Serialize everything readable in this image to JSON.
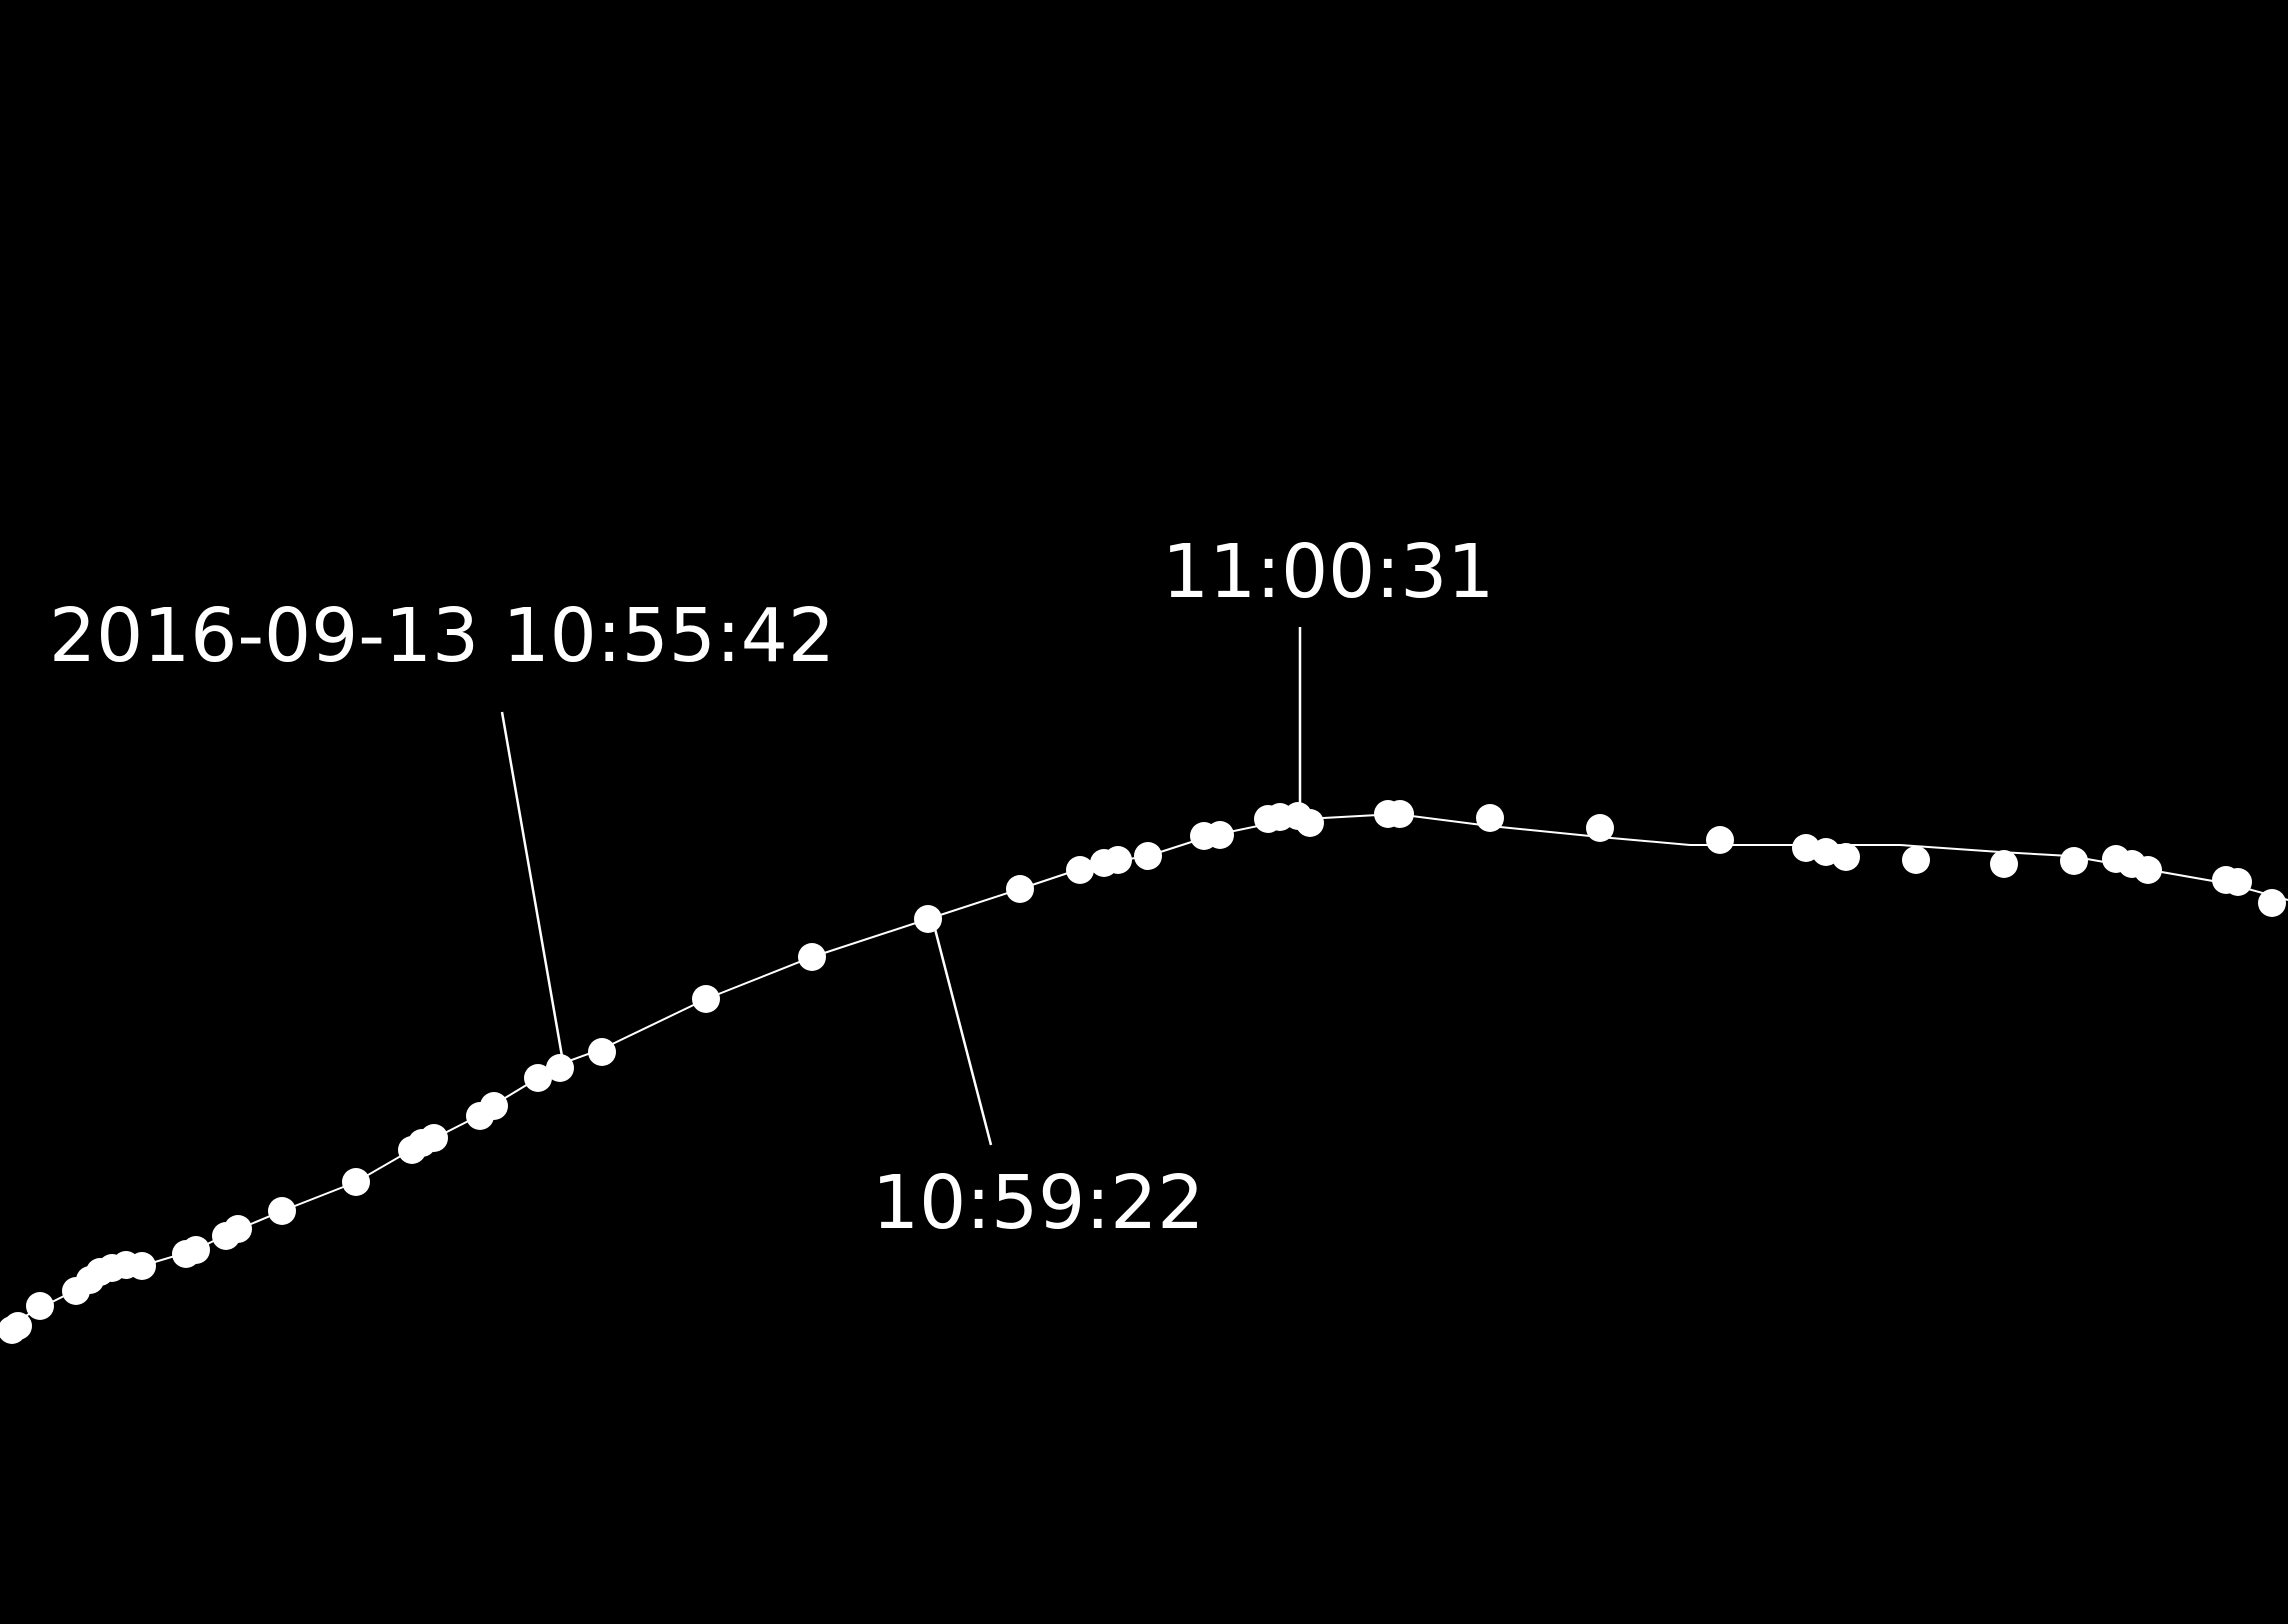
{
  "colors": {
    "background": "#000000",
    "foreground": "#ffffff"
  },
  "callouts": [
    {
      "label": "2016-09-13 10:55:42"
    },
    {
      "label": "10:59:22"
    },
    {
      "label": "11:00:31"
    }
  ]
}
